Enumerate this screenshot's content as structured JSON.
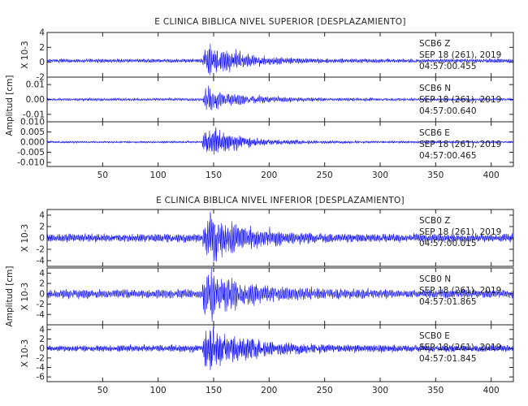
{
  "chart_data": [
    {
      "type": "line",
      "title": "E CLINICA BIBLICA NIVEL SUPERIOR [DESPLAZAMIENTO]",
      "ylabel": "Amplitud [cm]",
      "xlim": [
        0,
        420
      ],
      "x_ticks": [
        50,
        100,
        150,
        200,
        250,
        300,
        350,
        400
      ],
      "line_color": "#0000ff",
      "panels": [
        {
          "label": "SCB6  Z",
          "date": "SEP 18 (261), 2019",
          "time": "04:57:00.455",
          "scale_label": "X 10-3",
          "ylim": [
            -2,
            4
          ],
          "y_ticks": [
            -2,
            0,
            2,
            4
          ],
          "y_tick_labels": [
            "-2",
            "0",
            "2",
            "4"
          ],
          "trace": {
            "t_onset": 140,
            "noise": 0.25,
            "peak": 2.3,
            "baseline": 0.2,
            "decay": 32,
            "freq": 1.4
          }
        },
        {
          "label": "SCB6  N",
          "date": "SEP 18 (261), 2019",
          "time": "04:57:00.640",
          "scale_label": "",
          "ylim": [
            -0.015,
            0.015
          ],
          "y_ticks": [
            -0.01,
            0.0,
            0.01
          ],
          "y_tick_labels": [
            "-0.01",
            "0.00",
            "0.01"
          ],
          "trace": {
            "t_onset": 140,
            "noise": 0.0009,
            "peak": 0.009,
            "baseline": 0.0,
            "decay": 30,
            "freq": 1.3
          }
        },
        {
          "label": "SCB6  E",
          "date": "SEP 18 (261), 2019",
          "time": "04:57:00.465",
          "scale_label": "",
          "ylim": [
            -0.012,
            0.01
          ],
          "y_ticks": [
            -0.01,
            -0.005,
            0.0,
            0.005,
            0.01
          ],
          "y_tick_labels": [
            "-0.010",
            "-0.005",
            "0.000",
            "0.005",
            "0.010"
          ],
          "trace": {
            "t_onset": 140,
            "noise": 0.0005,
            "peak": 0.008,
            "baseline": 0.0,
            "decay": 30,
            "freq": 1.5
          }
        }
      ]
    },
    {
      "type": "line",
      "title": "E CLINICA BIBLICA NIVEL INFERIOR [DESPLAZAMIENTO]",
      "ylabel": "Amplitud [cm]",
      "xlim": [
        0,
        420
      ],
      "x_ticks": [
        50,
        100,
        150,
        200,
        250,
        300,
        350,
        400
      ],
      "line_color": "#0000ff",
      "panels": [
        {
          "label": "SCB0  Z",
          "date": "SEP 18 (261), 2019",
          "time": "04:57:00.015",
          "scale_label": "X 10-3",
          "ylim": [
            -5,
            5
          ],
          "y_ticks": [
            -4,
            -2,
            0,
            2,
            4
          ],
          "y_tick_labels": [
            "-4",
            "-2",
            "0",
            "2",
            "4"
          ],
          "trace": {
            "t_onset": 140,
            "noise": 0.7,
            "peak": 4.0,
            "baseline": 0.0,
            "decay": 35,
            "freq": 1.4
          }
        },
        {
          "label": "SCB0  N",
          "date": "SEP 18 (261), 2019",
          "time": "04:57:01.865",
          "scale_label": "X 10-3",
          "ylim": [
            -6,
            5
          ],
          "y_ticks": [
            -4,
            -2,
            0,
            2,
            4
          ],
          "y_tick_labels": [
            "-4",
            "-2",
            "0",
            "2",
            "4"
          ],
          "trace": {
            "t_onset": 140,
            "noise": 0.8,
            "peak": 4.5,
            "baseline": 0.0,
            "decay": 38,
            "freq": 1.3
          }
        },
        {
          "label": "SCB0  E",
          "date": "SEP 18 (261), 2019",
          "time": "04:57:01.845",
          "scale_label": "X 10-3",
          "ylim": [
            -7,
            5
          ],
          "y_ticks": [
            -6,
            -4,
            -2,
            0,
            2,
            4
          ],
          "y_tick_labels": [
            "-6",
            "-4",
            "-2",
            "0",
            "2",
            "4"
          ],
          "trace": {
            "t_onset": 140,
            "noise": 0.7,
            "peak": 5.0,
            "baseline": 0.0,
            "decay": 36,
            "freq": 1.5
          }
        }
      ]
    }
  ]
}
